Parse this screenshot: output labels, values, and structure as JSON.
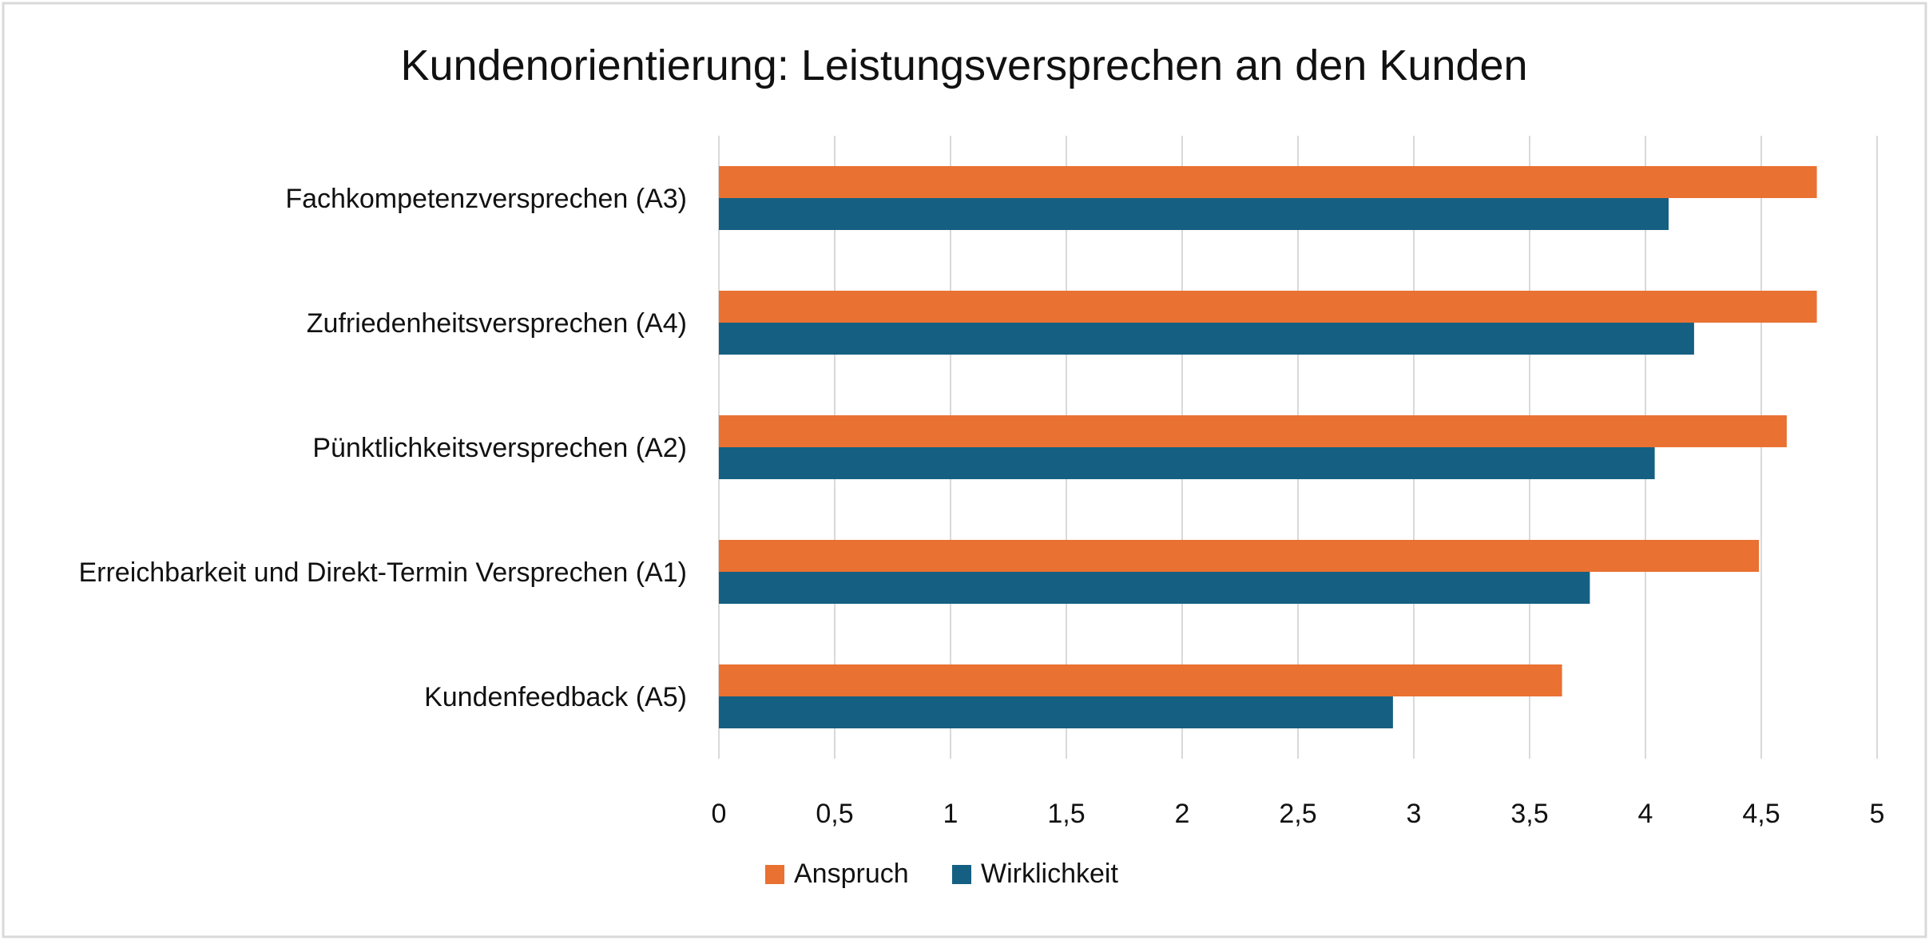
{
  "chart_data": {
    "type": "bar",
    "orientation": "horizontal",
    "title": "Kundenorientierung: Leistungsversprechen an den Kunden",
    "categories": [
      "Fachkompetenzversprechen (A3)",
      "Zufriedenheitsversprechen (A4)",
      "Pünktlichkeitsversprechen (A2)",
      "Erreichbarkeit und Direkt-Termin Versprechen (A1)",
      "Kundenfeedback (A5)"
    ],
    "series": [
      {
        "name": "Anspruch",
        "color": "#e97132",
        "values": [
          4.74,
          4.74,
          4.61,
          4.49,
          3.64
        ]
      },
      {
        "name": "Wirklichkeit",
        "color": "#156082",
        "values": [
          4.1,
          4.21,
          4.04,
          3.76,
          2.91
        ]
      }
    ],
    "xlim": [
      0,
      5
    ],
    "xticks": [
      0,
      0.5,
      1,
      1.5,
      2,
      2.5,
      3,
      3.5,
      4,
      4.5,
      5
    ],
    "xtick_labels": [
      "0",
      "0,5",
      "1",
      "1,5",
      "2",
      "2,5",
      "3",
      "3,5",
      "4",
      "4,5",
      "5"
    ],
    "xlabel": "",
    "ylabel": "",
    "grid": true,
    "legend_position": "bottom"
  }
}
